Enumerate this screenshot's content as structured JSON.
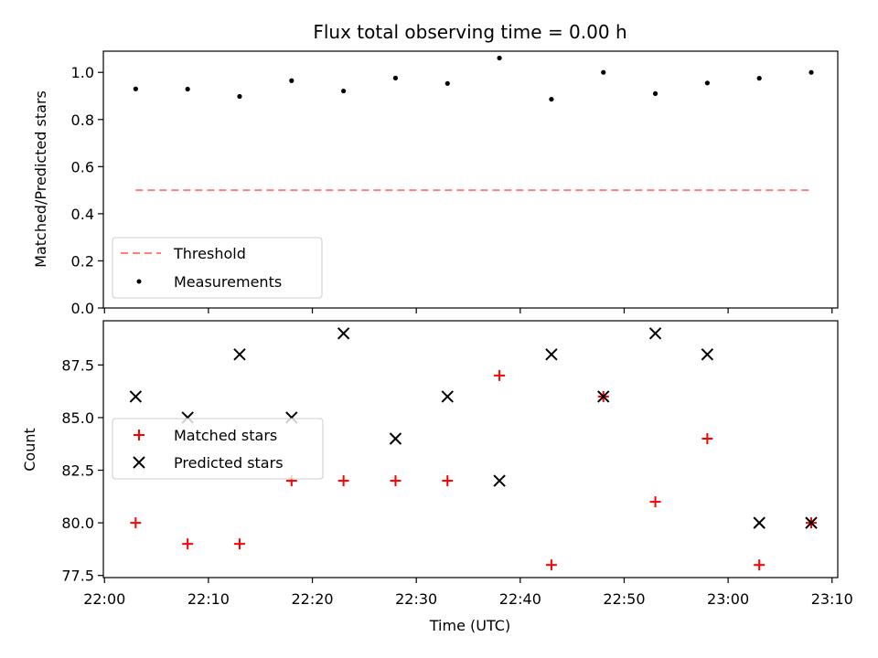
{
  "chart_data": [
    {
      "type": "scatter",
      "title": "Flux total observing time = 0.00 h",
      "xlabel": "",
      "ylabel": "Matched/Predicted stars",
      "ylim": [
        0,
        1.09
      ],
      "yticks": [
        0.0,
        0.2,
        0.4,
        0.6,
        0.8,
        1.0
      ],
      "ytick_labels": [
        "0.0",
        "0.2",
        "0.4",
        "0.6",
        "0.8",
        "1.0"
      ],
      "x": [
        "22:03",
        "22:08",
        "22:13",
        "22:18",
        "22:23",
        "22:28",
        "22:33",
        "22:38",
        "22:43",
        "22:48",
        "22:53",
        "22:58",
        "23:03",
        "23:08"
      ],
      "series": [
        {
          "name": "Measurements",
          "marker": "dot",
          "color": "#000000",
          "values": [
            0.93,
            0.929,
            0.898,
            0.965,
            0.921,
            0.976,
            0.953,
            1.061,
            0.886,
            1.0,
            0.91,
            0.955,
            0.975,
            1.0
          ]
        },
        {
          "name": "Threshold",
          "marker": "dashed-line",
          "color": "#ff7f7f",
          "values": [
            0.5,
            0.5
          ]
        }
      ],
      "legend_placement": "lower-left"
    },
    {
      "type": "scatter",
      "xlabel": "Time (UTC)",
      "ylabel": "Count",
      "ylim": [
        77.4,
        89.6
      ],
      "yticks": [
        77.5,
        80.0,
        82.5,
        85.0,
        87.5
      ],
      "ytick_labels": [
        "77.5",
        "80.0",
        "82.5",
        "85.0",
        "87.5"
      ],
      "xlim": [
        "22:00",
        "23:10"
      ],
      "xticks": [
        "22:00",
        "22:10",
        "22:20",
        "22:30",
        "22:40",
        "22:50",
        "23:00",
        "23:10"
      ],
      "x": [
        "22:03",
        "22:08",
        "22:13",
        "22:18",
        "22:23",
        "22:28",
        "22:33",
        "22:38",
        "22:43",
        "22:48",
        "22:53",
        "22:58",
        "23:03",
        "23:08"
      ],
      "series": [
        {
          "name": "Matched stars",
          "marker": "plus",
          "color": "#ff0000",
          "values": [
            80,
            79,
            79,
            82,
            82,
            82,
            82,
            87,
            78,
            86,
            81,
            84,
            78,
            80
          ]
        },
        {
          "name": "Predicted stars",
          "marker": "x",
          "color": "#000000",
          "values": [
            86,
            85,
            88,
            85,
            89,
            84,
            86,
            82,
            88,
            86,
            89,
            88,
            80,
            80
          ]
        }
      ],
      "legend_placement": "center-left"
    }
  ]
}
